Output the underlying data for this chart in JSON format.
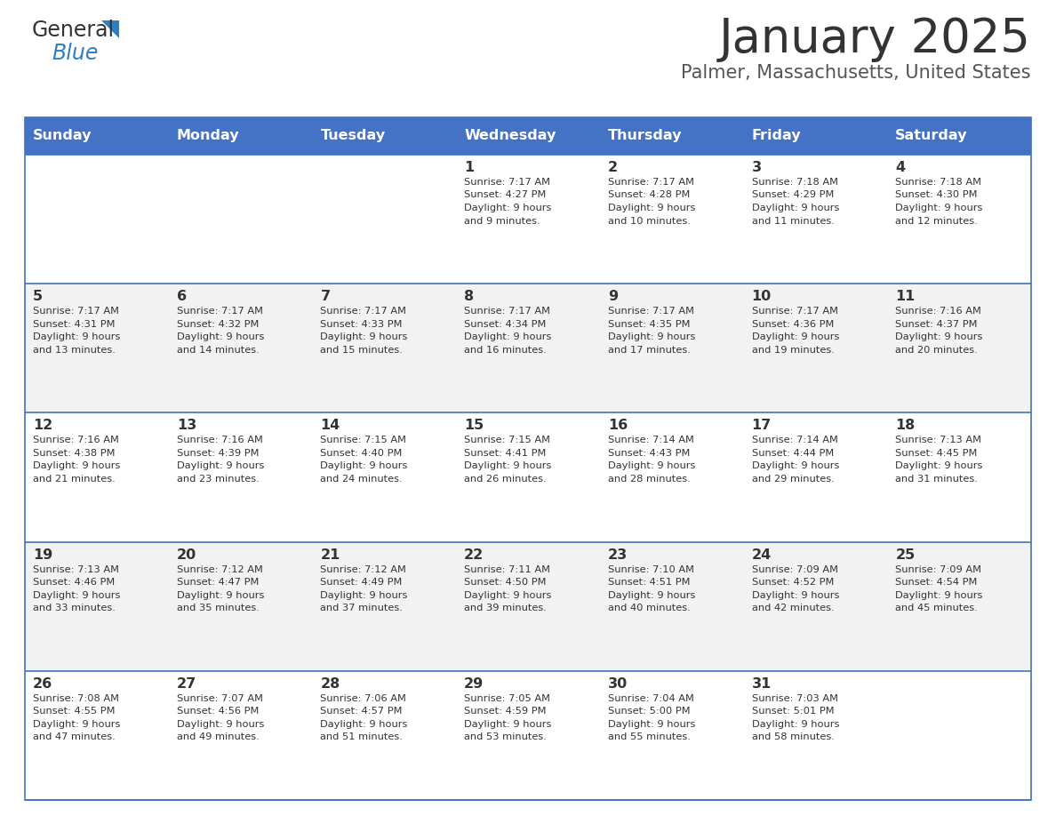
{
  "title": "January 2025",
  "subtitle": "Palmer, Massachusetts, United States",
  "title_color": "#333333",
  "subtitle_color": "#555555",
  "header_bg_color": "#4472C4",
  "header_text_color": "#FFFFFF",
  "cell_border_color": "#4472C4",
  "day_number_color": "#333333",
  "cell_text_color": "#333333",
  "alt_row_bg": "#F2F2F2",
  "normal_row_bg": "#FFFFFF",
  "days_of_week": [
    "Sunday",
    "Monday",
    "Tuesday",
    "Wednesday",
    "Thursday",
    "Friday",
    "Saturday"
  ],
  "weeks": [
    [
      {
        "day": "",
        "sunrise": "",
        "sunset": "",
        "daylight": ""
      },
      {
        "day": "",
        "sunrise": "",
        "sunset": "",
        "daylight": ""
      },
      {
        "day": "",
        "sunrise": "",
        "sunset": "",
        "daylight": ""
      },
      {
        "day": "1",
        "sunrise": "7:17 AM",
        "sunset": "4:27 PM",
        "daylight": "9 hours\nand 9 minutes."
      },
      {
        "day": "2",
        "sunrise": "7:17 AM",
        "sunset": "4:28 PM",
        "daylight": "9 hours\nand 10 minutes."
      },
      {
        "day": "3",
        "sunrise": "7:18 AM",
        "sunset": "4:29 PM",
        "daylight": "9 hours\nand 11 minutes."
      },
      {
        "day": "4",
        "sunrise": "7:18 AM",
        "sunset": "4:30 PM",
        "daylight": "9 hours\nand 12 minutes."
      }
    ],
    [
      {
        "day": "5",
        "sunrise": "7:17 AM",
        "sunset": "4:31 PM",
        "daylight": "9 hours\nand 13 minutes."
      },
      {
        "day": "6",
        "sunrise": "7:17 AM",
        "sunset": "4:32 PM",
        "daylight": "9 hours\nand 14 minutes."
      },
      {
        "day": "7",
        "sunrise": "7:17 AM",
        "sunset": "4:33 PM",
        "daylight": "9 hours\nand 15 minutes."
      },
      {
        "day": "8",
        "sunrise": "7:17 AM",
        "sunset": "4:34 PM",
        "daylight": "9 hours\nand 16 minutes."
      },
      {
        "day": "9",
        "sunrise": "7:17 AM",
        "sunset": "4:35 PM",
        "daylight": "9 hours\nand 17 minutes."
      },
      {
        "day": "10",
        "sunrise": "7:17 AM",
        "sunset": "4:36 PM",
        "daylight": "9 hours\nand 19 minutes."
      },
      {
        "day": "11",
        "sunrise": "7:16 AM",
        "sunset": "4:37 PM",
        "daylight": "9 hours\nand 20 minutes."
      }
    ],
    [
      {
        "day": "12",
        "sunrise": "7:16 AM",
        "sunset": "4:38 PM",
        "daylight": "9 hours\nand 21 minutes."
      },
      {
        "day": "13",
        "sunrise": "7:16 AM",
        "sunset": "4:39 PM",
        "daylight": "9 hours\nand 23 minutes."
      },
      {
        "day": "14",
        "sunrise": "7:15 AM",
        "sunset": "4:40 PM",
        "daylight": "9 hours\nand 24 minutes."
      },
      {
        "day": "15",
        "sunrise": "7:15 AM",
        "sunset": "4:41 PM",
        "daylight": "9 hours\nand 26 minutes."
      },
      {
        "day": "16",
        "sunrise": "7:14 AM",
        "sunset": "4:43 PM",
        "daylight": "9 hours\nand 28 minutes."
      },
      {
        "day": "17",
        "sunrise": "7:14 AM",
        "sunset": "4:44 PM",
        "daylight": "9 hours\nand 29 minutes."
      },
      {
        "day": "18",
        "sunrise": "7:13 AM",
        "sunset": "4:45 PM",
        "daylight": "9 hours\nand 31 minutes."
      }
    ],
    [
      {
        "day": "19",
        "sunrise": "7:13 AM",
        "sunset": "4:46 PM",
        "daylight": "9 hours\nand 33 minutes."
      },
      {
        "day": "20",
        "sunrise": "7:12 AM",
        "sunset": "4:47 PM",
        "daylight": "9 hours\nand 35 minutes."
      },
      {
        "day": "21",
        "sunrise": "7:12 AM",
        "sunset": "4:49 PM",
        "daylight": "9 hours\nand 37 minutes."
      },
      {
        "day": "22",
        "sunrise": "7:11 AM",
        "sunset": "4:50 PM",
        "daylight": "9 hours\nand 39 minutes."
      },
      {
        "day": "23",
        "sunrise": "7:10 AM",
        "sunset": "4:51 PM",
        "daylight": "9 hours\nand 40 minutes."
      },
      {
        "day": "24",
        "sunrise": "7:09 AM",
        "sunset": "4:52 PM",
        "daylight": "9 hours\nand 42 minutes."
      },
      {
        "day": "25",
        "sunrise": "7:09 AM",
        "sunset": "4:54 PM",
        "daylight": "9 hours\nand 45 minutes."
      }
    ],
    [
      {
        "day": "26",
        "sunrise": "7:08 AM",
        "sunset": "4:55 PM",
        "daylight": "9 hours\nand 47 minutes."
      },
      {
        "day": "27",
        "sunrise": "7:07 AM",
        "sunset": "4:56 PM",
        "daylight": "9 hours\nand 49 minutes."
      },
      {
        "day": "28",
        "sunrise": "7:06 AM",
        "sunset": "4:57 PM",
        "daylight": "9 hours\nand 51 minutes."
      },
      {
        "day": "29",
        "sunrise": "7:05 AM",
        "sunset": "4:59 PM",
        "daylight": "9 hours\nand 53 minutes."
      },
      {
        "day": "30",
        "sunrise": "7:04 AM",
        "sunset": "5:00 PM",
        "daylight": "9 hours\nand 55 minutes."
      },
      {
        "day": "31",
        "sunrise": "7:03 AM",
        "sunset": "5:01 PM",
        "daylight": "9 hours\nand 58 minutes."
      },
      {
        "day": "",
        "sunrise": "",
        "sunset": "",
        "daylight": ""
      }
    ]
  ]
}
